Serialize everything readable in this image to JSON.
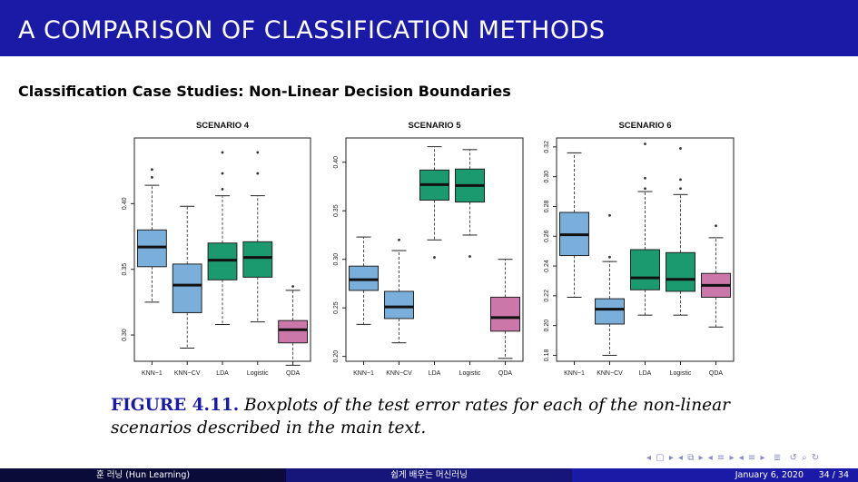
{
  "header": {
    "title": "A COMPARISON OF CLASSIFICATION METHODS"
  },
  "subtitle": "Classification Case Studies: Non-Linear Decision Boundaries",
  "caption": {
    "figure_label": "FIGURE 4.11.",
    "text": "Boxplots of the test error rates for each of the non-linear scenarios described in the main text."
  },
  "footer": {
    "author": "훈 러닝 (Hun Learning)",
    "course": "쉽게 배우는 머신러닝",
    "date": "January 6, 2020",
    "page": "34 / 34"
  },
  "colors": {
    "knn": "#7aaedb",
    "linear": "#1a9a6e",
    "qda": "#cc77aa",
    "accent": "#1a1aa6"
  },
  "chart_data": [
    {
      "type": "boxplot",
      "title": "SCENARIO 4",
      "categories": [
        "KNN−1",
        "KNN−CV",
        "LDA",
        "Logistic",
        "QDA"
      ],
      "yticks": [
        0.3,
        0.35,
        0.4
      ],
      "ylim": [
        0.28,
        0.45
      ],
      "boxes": [
        {
          "min": 0.325,
          "q1": 0.352,
          "median": 0.367,
          "q3": 0.38,
          "max": 0.414,
          "outliers": [
            0.42,
            0.426
          ]
        },
        {
          "min": 0.29,
          "q1": 0.317,
          "median": 0.338,
          "q3": 0.354,
          "max": 0.398,
          "outliers": []
        },
        {
          "min": 0.308,
          "q1": 0.342,
          "median": 0.357,
          "q3": 0.37,
          "max": 0.406,
          "outliers": [
            0.411,
            0.423,
            0.439
          ]
        },
        {
          "min": 0.31,
          "q1": 0.344,
          "median": 0.359,
          "q3": 0.371,
          "max": 0.406,
          "outliers": [
            0.423,
            0.439
          ]
        },
        {
          "min": 0.277,
          "q1": 0.294,
          "median": 0.304,
          "q3": 0.311,
          "max": 0.334,
          "outliers": [
            0.337
          ]
        }
      ]
    },
    {
      "type": "boxplot",
      "title": "SCENARIO 5",
      "categories": [
        "KNN−1",
        "KNN−CV",
        "LDA",
        "Logistic",
        "QDA"
      ],
      "yticks": [
        0.2,
        0.25,
        0.3,
        0.35,
        0.4
      ],
      "ylim": [
        0.195,
        0.425
      ],
      "boxes": [
        {
          "min": 0.233,
          "q1": 0.268,
          "median": 0.279,
          "q3": 0.293,
          "max": 0.323,
          "outliers": []
        },
        {
          "min": 0.214,
          "q1": 0.239,
          "median": 0.251,
          "q3": 0.267,
          "max": 0.309,
          "outliers": [
            0.32
          ]
        },
        {
          "min": 0.32,
          "q1": 0.361,
          "median": 0.377,
          "q3": 0.392,
          "max": 0.416,
          "outliers": [
            0.302
          ]
        },
        {
          "min": 0.325,
          "q1": 0.359,
          "median": 0.376,
          "q3": 0.393,
          "max": 0.413,
          "outliers": [
            0.303
          ]
        },
        {
          "min": 0.198,
          "q1": 0.226,
          "median": 0.24,
          "q3": 0.261,
          "max": 0.3,
          "outliers": []
        }
      ]
    },
    {
      "type": "boxplot",
      "title": "SCENARIO 6",
      "categories": [
        "KNN−1",
        "KNN−CV",
        "LDA",
        "Logistic",
        "QDA"
      ],
      "yticks": [
        0.18,
        0.2,
        0.22,
        0.24,
        0.26,
        0.28,
        0.3,
        0.32
      ],
      "ylim": [
        0.176,
        0.326
      ],
      "boxes": [
        {
          "min": 0.219,
          "q1": 0.247,
          "median": 0.261,
          "q3": 0.276,
          "max": 0.316,
          "outliers": []
        },
        {
          "min": 0.18,
          "q1": 0.201,
          "median": 0.211,
          "q3": 0.218,
          "max": 0.243,
          "outliers": [
            0.246,
            0.274
          ]
        },
        {
          "min": 0.207,
          "q1": 0.224,
          "median": 0.232,
          "q3": 0.251,
          "max": 0.29,
          "outliers": [
            0.292,
            0.299,
            0.322
          ]
        },
        {
          "min": 0.207,
          "q1": 0.223,
          "median": 0.231,
          "q3": 0.249,
          "max": 0.288,
          "outliers": [
            0.292,
            0.298,
            0.319
          ]
        },
        {
          "min": 0.199,
          "q1": 0.219,
          "median": 0.227,
          "q3": 0.235,
          "max": 0.259,
          "outliers": [
            0.267
          ]
        }
      ]
    }
  ]
}
